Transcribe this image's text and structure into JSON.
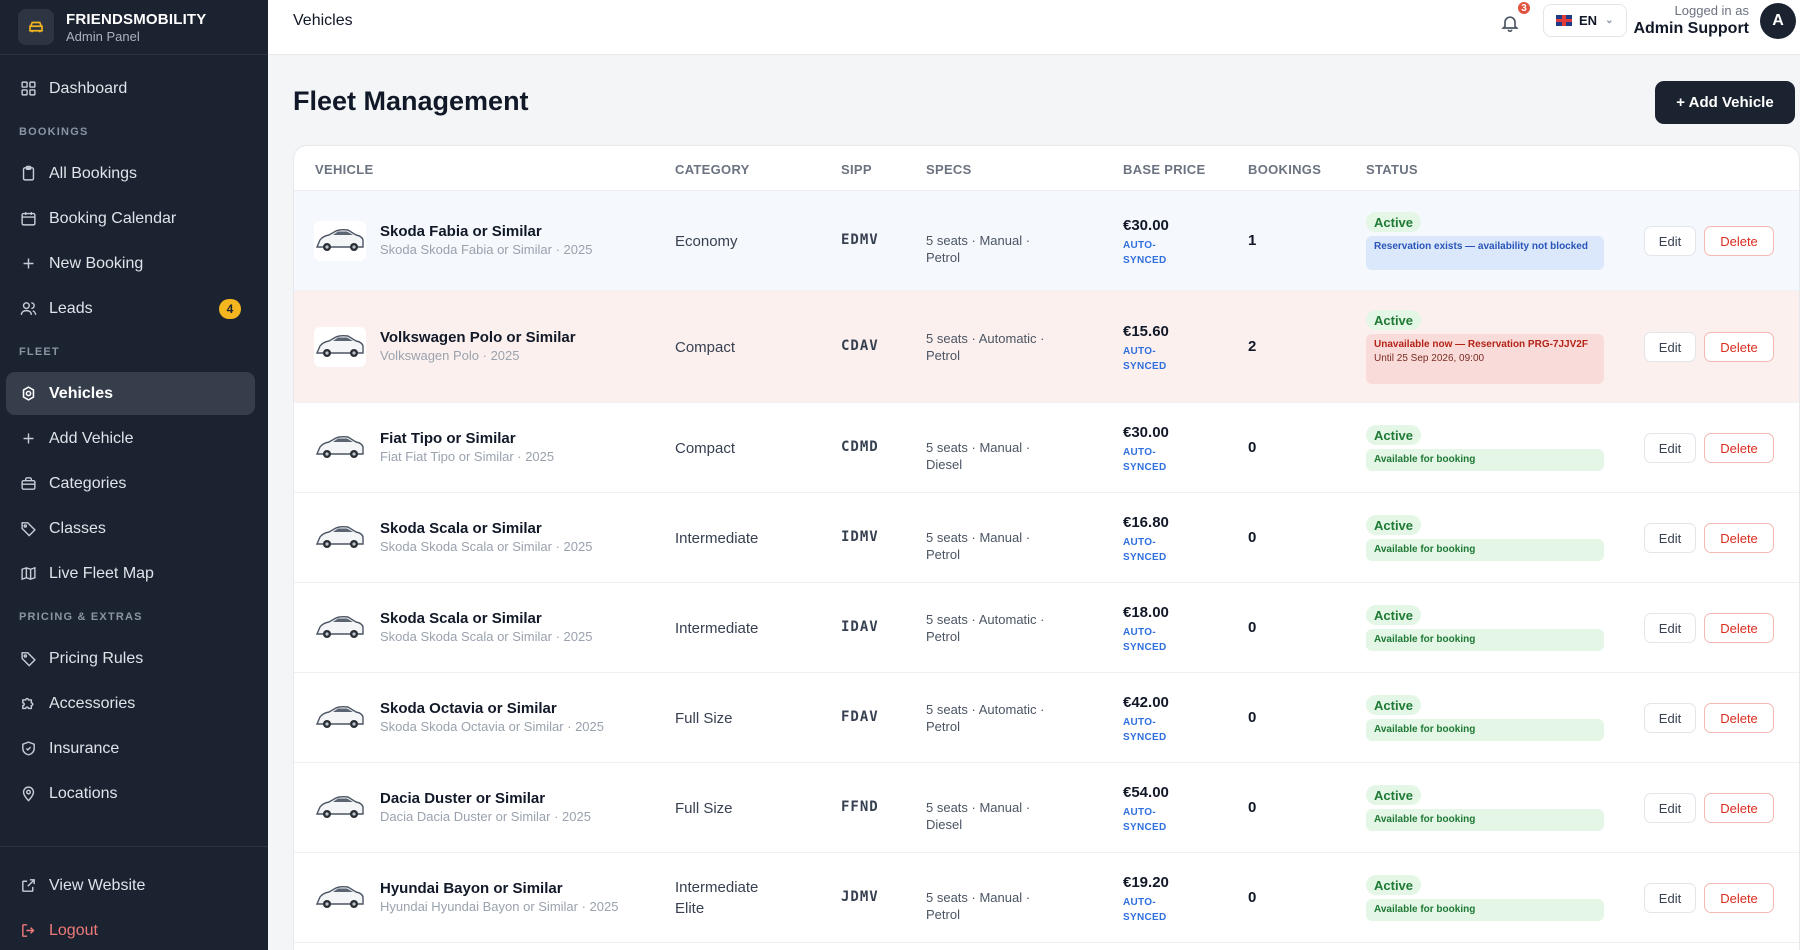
{
  "brand": {
    "title": "FRIENDSMOBILITY",
    "subtitle": "Admin Panel"
  },
  "sidebar": {
    "dashboard": "Dashboard",
    "section_bookings": "BOOKINGS",
    "all_bookings": "All Bookings",
    "booking_calendar": "Booking Calendar",
    "new_booking": "New Booking",
    "leads": "Leads",
    "leads_badge": "4",
    "section_fleet": "FLEET",
    "vehicles": "Vehicles",
    "add_vehicle": "Add Vehicle",
    "categories": "Categories",
    "classes": "Classes",
    "live_fleet_map": "Live Fleet Map",
    "section_pricing": "PRICING & EXTRAS",
    "pricing_rules": "Pricing Rules",
    "accessories": "Accessories",
    "insurance": "Insurance",
    "locations": "Locations",
    "view_website": "View Website",
    "logout": "Logout"
  },
  "header": {
    "breadcrumb": "Vehicles",
    "notification_count": "3",
    "language": "EN",
    "logged_in_label": "Logged in as",
    "user_name": "Admin Support",
    "avatar_initial": "A"
  },
  "main": {
    "title": "Fleet Management",
    "add_button": "+ Add Vehicle",
    "columns": {
      "vehicle": "VEHICLE",
      "category": "CATEGORY",
      "sipp": "SIPP",
      "specs": "SPECS",
      "base_price": "BASE PRICE",
      "bookings": "BOOKINGS",
      "status": "STATUS"
    },
    "rows": [
      {
        "name": "Skoda Fabia or Similar",
        "sub": "Skoda Skoda Fabia or Similar · 2025",
        "category": "Economy",
        "sipp": "EDMV",
        "specs": "5 seats · Manual · Petrol",
        "price": "€30.00",
        "sync": "AUTO-SYNCED",
        "bookings": "1",
        "status": "Active",
        "availability": "Reservation exists — availability not blocked",
        "availability_until": "",
        "availability_type": "blue"
      },
      {
        "name": "Volkswagen Polo or Similar",
        "sub": "Volkswagen Polo · 2025",
        "category": "Compact",
        "sipp": "CDAV",
        "specs": "5 seats · Automatic · Petrol",
        "price": "€15.60",
        "sync": "AUTO-SYNCED",
        "bookings": "2",
        "status": "Active",
        "availability": "Unavailable now — Reservation PRG-7JJV2F",
        "availability_until": "Until 25 Sep 2026, 09:00",
        "availability_type": "red"
      },
      {
        "name": "Fiat Tipo or Similar",
        "sub": "Fiat Fiat Tipo or Similar · 2025",
        "category": "Compact",
        "sipp": "CDMD",
        "specs": "5 seats · Manual · Diesel",
        "price": "€30.00",
        "sync": "AUTO-SYNCED",
        "bookings": "0",
        "status": "Active",
        "availability": "Available for booking",
        "availability_until": "",
        "availability_type": "green"
      },
      {
        "name": "Skoda Scala or Similar",
        "sub": "Skoda Skoda Scala or Similar · 2025",
        "category": "Intermediate",
        "sipp": "IDMV",
        "specs": "5 seats · Manual · Petrol",
        "price": "€16.80",
        "sync": "AUTO-SYNCED",
        "bookings": "0",
        "status": "Active",
        "availability": "Available for booking",
        "availability_until": "",
        "availability_type": "green"
      },
      {
        "name": "Skoda Scala or Similar",
        "sub": "Skoda Skoda Scala or Similar · 2025",
        "category": "Intermediate",
        "sipp": "IDAV",
        "specs": "5 seats · Automatic · Petrol",
        "price": "€18.00",
        "sync": "AUTO-SYNCED",
        "bookings": "0",
        "status": "Active",
        "availability": "Available for booking",
        "availability_until": "",
        "availability_type": "green"
      },
      {
        "name": "Skoda Octavia or Similar",
        "sub": "Skoda Skoda Octavia or Similar · 2025",
        "category": "Full Size",
        "sipp": "FDAV",
        "specs": "5 seats · Automatic · Petrol",
        "price": "€42.00",
        "sync": "AUTO-SYNCED",
        "bookings": "0",
        "status": "Active",
        "availability": "Available for booking",
        "availability_until": "",
        "availability_type": "green"
      },
      {
        "name": "Dacia Duster or Similar",
        "sub": "Dacia Dacia Duster or Similar · 2025",
        "category": "Full Size",
        "sipp": "FFND",
        "specs": "5 seats · Manual · Diesel",
        "price": "€54.00",
        "sync": "AUTO-SYNCED",
        "bookings": "0",
        "status": "Active",
        "availability": "Available for booking",
        "availability_until": "",
        "availability_type": "green"
      },
      {
        "name": "Hyundai Bayon or Similar",
        "sub": "Hyundai Hyundai Bayon or Similar · 2025",
        "category": "Intermediate Elite",
        "sipp": "JDMV",
        "specs": "5 seats · Manual · Petrol",
        "price": "€19.20",
        "sync": "AUTO-SYNCED",
        "bookings": "0",
        "status": "Active",
        "availability": "Available for booking",
        "availability_until": "",
        "availability_type": "green"
      }
    ],
    "edit_label": "Edit",
    "delete_label": "Delete"
  },
  "icons": {
    "brand": "car-logo-icon",
    "dashboard": "grid-icon",
    "all_bookings": "clipboard-icon",
    "booking_calendar": "calendar-icon",
    "new_booking": "plus-icon",
    "leads": "users-icon",
    "vehicles": "car-icon",
    "add_vehicle": "plus-icon",
    "categories": "briefcase-icon",
    "classes": "tag-icon",
    "live_fleet_map": "map-icon",
    "pricing_rules": "tag-icon",
    "accessories": "puzzle-icon",
    "insurance": "shield-icon",
    "locations": "pin-icon",
    "view_website": "external-link-icon",
    "logout": "logout-icon",
    "bell": "bell-icon"
  },
  "colors": {
    "sidebar_bg": "#1c2330",
    "accent_dark": "#1c2330",
    "active_green": "#1f7a35",
    "danger": "#d92d20",
    "sync_blue": "#2f6fde",
    "badge_yellow": "#f3b61f"
  }
}
